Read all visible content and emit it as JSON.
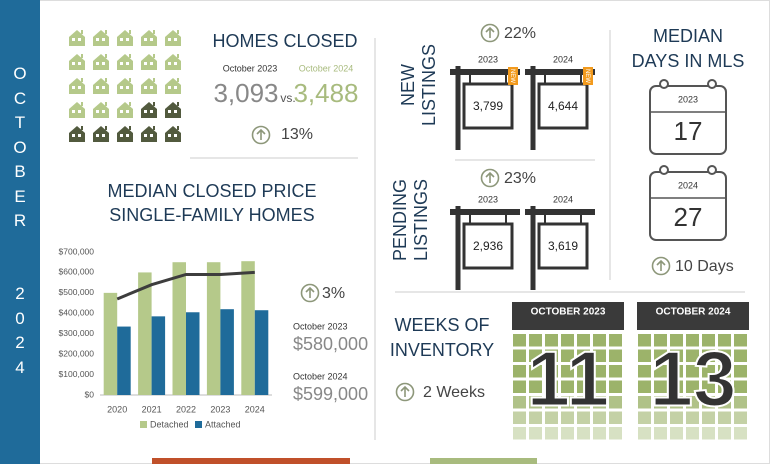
{
  "sidebar": {
    "month": "OCTOBER",
    "year": "2024"
  },
  "homes_closed": {
    "title": "HOMES CLOSED",
    "label_2023": "October 2023",
    "label_2024": "October 2024",
    "value_2023": "3,093",
    "vs": "vs.",
    "value_2024": "3,488",
    "change": "13%"
  },
  "new_listings": {
    "title": [
      "NEW",
      "LISTINGS"
    ],
    "change": "22%",
    "signs": [
      {
        "year": "2023",
        "badge": "NEW",
        "value": "3,799"
      },
      {
        "year": "2024",
        "badge": "NEW",
        "value": "4,644"
      }
    ]
  },
  "pending_listings": {
    "title": [
      "PENDING",
      "LISTINGS"
    ],
    "change": "23%",
    "signs": [
      {
        "year": "2023",
        "value": "2,936"
      },
      {
        "year": "2024",
        "value": "3,619"
      }
    ]
  },
  "median_days": {
    "title": [
      "MEDIAN",
      "DAYS IN MLS"
    ],
    "calendars": [
      {
        "year": "2023",
        "value": "17"
      },
      {
        "year": "2024",
        "value": "27"
      }
    ],
    "change": "10 Days"
  },
  "weeks_inventory": {
    "title": [
      "WEEKS OF",
      "INVENTORY"
    ],
    "change": "2 Weeks",
    "calendars": [
      {
        "header": "OCTOBER 2023",
        "value": "11"
      },
      {
        "header": "OCTOBER 2024",
        "value": "13"
      }
    ]
  },
  "median_price": {
    "title": [
      "MEDIAN CLOSED PRICE",
      "SINGLE-FAMILY HOMES"
    ],
    "change": "3%",
    "label_2023": "October 2023",
    "value_2023": "$580,000",
    "label_2024": "October 2024",
    "value_2024": "$599,000"
  },
  "chart_data": {
    "type": "bar",
    "categories": [
      "2020",
      "2021",
      "2022",
      "2023",
      "2024"
    ],
    "series": [
      {
        "name": "Detached",
        "color": "#b5c98a",
        "values": [
          500000,
          600000,
          650000,
          650000,
          655000
        ]
      },
      {
        "name": "Attached",
        "color": "#1f6b9a",
        "values": [
          335000,
          385000,
          405000,
          420000,
          415000
        ]
      },
      {
        "type": "line",
        "color": "#3d3d3d",
        "values": [
          470000,
          540000,
          590000,
          590000,
          600000
        ]
      }
    ],
    "ylim": [
      0,
      700000
    ],
    "yticks": [
      {
        "value": 0,
        "label": "$0"
      },
      {
        "value": 100000,
        "label": "$100,000"
      },
      {
        "value": 200000,
        "label": "$200,000"
      },
      {
        "value": 300000,
        "label": "$300,000"
      },
      {
        "value": 400000,
        "label": "$400,000"
      },
      {
        "value": 500000,
        "label": "$500,000"
      },
      {
        "value": 600000,
        "label": "$600,000"
      },
      {
        "value": 700000,
        "label": "$700,000"
      }
    ],
    "grid": false
  }
}
